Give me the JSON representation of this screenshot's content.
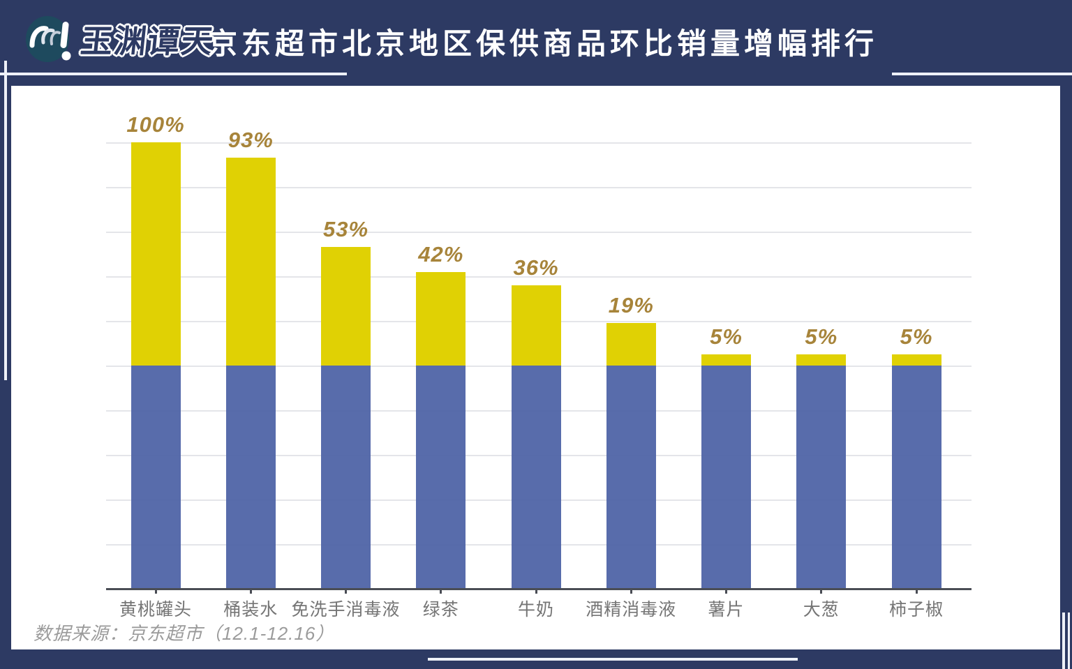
{
  "header": {
    "logo": {
      "brand_name": "玉渊谭天",
      "icon": "swirl-exclamation-icon",
      "circle_color": "#1e4a5e"
    },
    "title": "京东超市北京地区保供商品环比销量增幅排行"
  },
  "chart_data": {
    "type": "bar",
    "title": "京东超市北京地区保供商品环比销量增幅排行",
    "categories": [
      "黄桃罐头",
      "桶装水",
      "免洗手消毒液",
      "绿茶",
      "牛奶",
      "酒精消毒液",
      "薯片",
      "大葱",
      "柿子椒"
    ],
    "values": [
      100,
      93,
      53,
      42,
      36,
      19,
      5,
      5,
      5
    ],
    "value_labels": [
      "100%",
      "93%",
      "53%",
      "42%",
      "36%",
      "19%",
      "5%",
      "5%",
      "5%"
    ],
    "unit": "percent",
    "xlabel": "",
    "ylabel": "",
    "ylim": [
      0,
      100
    ],
    "gridline_step_pct": 20,
    "grid": true,
    "legend": "none",
    "bar_style": "yellow growth segment stacked on a constant blue base pedestal",
    "colors": {
      "growth_segment": "#e0d104",
      "base_segment": "#4f64a7",
      "value_label": "#a7843a",
      "category_label": "#757575",
      "background_card": "#ffffff",
      "page_background": "#2d3a63"
    }
  },
  "footer": {
    "source": "数据来源：京东超市（12.1-12.16）"
  }
}
